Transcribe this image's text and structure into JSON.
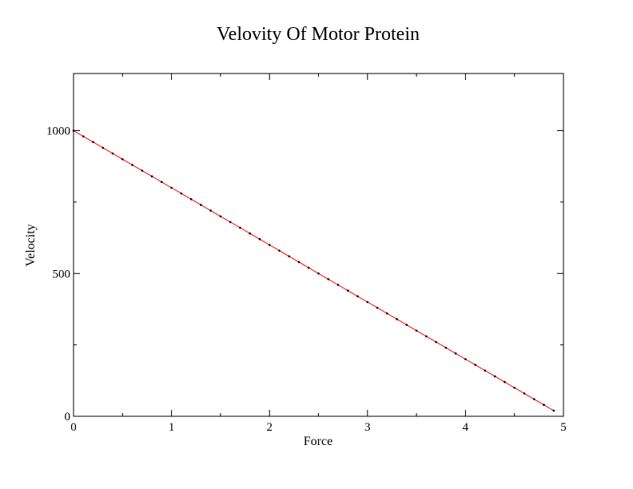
{
  "chart_data": {
    "type": "line",
    "title": "Velovity Of Motor Protein",
    "xlabel": "Force",
    "ylabel": "Velocity",
    "xlim": [
      0,
      5
    ],
    "ylim": [
      0,
      1200
    ],
    "x_ticks": [
      0,
      1,
      2,
      3,
      4,
      5
    ],
    "y_ticks": [
      0,
      500,
      1000
    ],
    "grid": false,
    "legend": "none",
    "series": [
      {
        "color": "#ff0000",
        "marker_color": "#000000",
        "x": [
          0,
          0.1,
          0.2,
          0.3,
          0.4,
          0.5,
          0.6,
          0.7,
          0.8,
          0.9,
          1.0,
          1.1,
          1.2,
          1.3,
          1.4,
          1.5,
          1.6,
          1.7,
          1.8,
          1.9,
          2.0,
          2.1,
          2.2,
          2.3,
          2.4,
          2.5,
          2.6,
          2.7,
          2.8,
          2.9,
          3.0,
          3.1,
          3.2,
          3.3,
          3.4,
          3.5,
          3.6,
          3.7,
          3.8,
          3.9,
          4.0,
          4.1,
          4.2,
          4.3,
          4.4,
          4.5,
          4.6,
          4.7,
          4.8,
          4.9
        ],
        "y": [
          1000,
          980,
          960,
          940,
          920,
          900,
          880,
          860,
          840,
          820,
          800,
          780,
          760,
          740,
          720,
          700,
          680,
          660,
          640,
          620,
          600,
          580,
          560,
          540,
          520,
          500,
          480,
          460,
          440,
          420,
          400,
          380,
          360,
          340,
          320,
          300,
          280,
          260,
          240,
          220,
          200,
          180,
          160,
          140,
          120,
          100,
          80,
          60,
          40,
          20
        ]
      }
    ]
  }
}
